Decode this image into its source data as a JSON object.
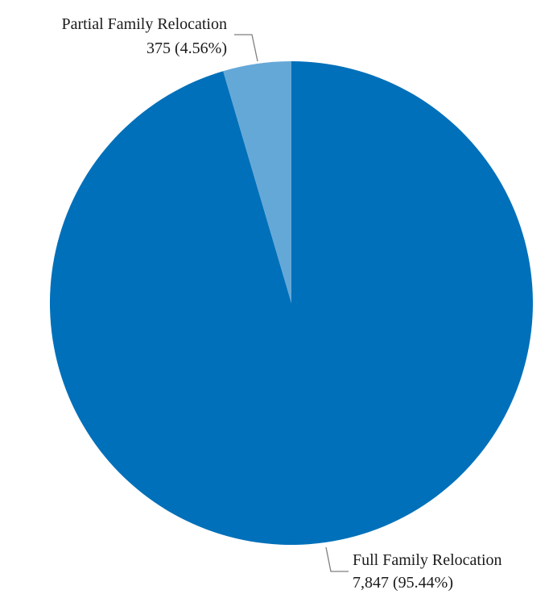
{
  "chart_data": {
    "type": "pie",
    "title": "",
    "start_angle_deg": 0,
    "direction": "clockwise",
    "slices": [
      {
        "label": "Full Family Relocation",
        "value": 7847,
        "value_label": "7,847 (95.44%)",
        "percent": 95.44,
        "color": "#0070BA"
      },
      {
        "label": "Partial Family Relocation",
        "value": 375,
        "value_label": "375 (4.56%)",
        "percent": 4.56,
        "color": "#64A8D8"
      }
    ],
    "legend": "none"
  }
}
